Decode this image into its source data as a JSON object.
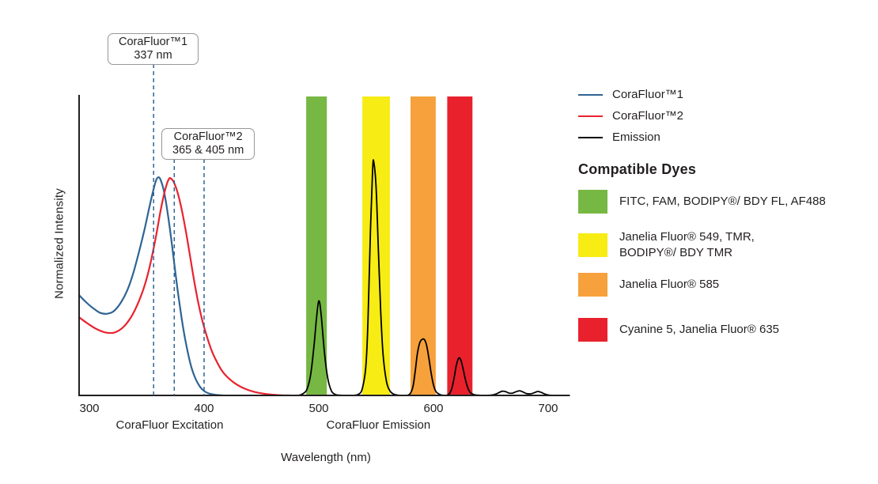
{
  "chart_data": {
    "type": "line",
    "title": "",
    "xlabel": "Wavelength (nm)",
    "ylabel": "Normalized Intensity",
    "x_ticks": [
      300,
      400,
      500,
      600,
      700
    ],
    "xlim": [
      291,
      718
    ],
    "ylim": [
      0,
      1.29
    ],
    "grid": false,
    "legend_position": "right",
    "axis_section_labels": [
      {
        "text": "CoraFluor Excitation",
        "at_nm": 370
      },
      {
        "text": "CoraFluor Emission",
        "at_nm": 552
      }
    ],
    "series": [
      {
        "name": "CoraFluor™1",
        "color": "#2f6493",
        "points": [
          [
            291,
            0.43
          ],
          [
            297,
            0.4
          ],
          [
            303,
            0.375
          ],
          [
            309,
            0.355
          ],
          [
            315,
            0.35
          ],
          [
            321,
            0.36
          ],
          [
            327,
            0.395
          ],
          [
            333,
            0.45
          ],
          [
            338,
            0.52
          ],
          [
            343,
            0.61
          ],
          [
            348,
            0.71
          ],
          [
            352,
            0.8
          ],
          [
            355,
            0.865
          ],
          [
            358,
            0.92
          ],
          [
            360,
            0.935
          ],
          [
            362,
            0.925
          ],
          [
            365,
            0.875
          ],
          [
            368,
            0.79
          ],
          [
            371,
            0.685
          ],
          [
            374,
            0.565
          ],
          [
            377,
            0.45
          ],
          [
            380,
            0.345
          ],
          [
            383,
            0.255
          ],
          [
            386,
            0.18
          ],
          [
            389,
            0.12
          ],
          [
            392,
            0.078
          ],
          [
            395,
            0.048
          ],
          [
            398,
            0.028
          ],
          [
            402,
            0.013
          ],
          [
            406,
            0.006
          ],
          [
            411,
            0.002
          ],
          [
            416,
            0
          ]
        ]
      },
      {
        "name": "CoraFluor™2",
        "color": "#e8232e",
        "points": [
          [
            291,
            0.335
          ],
          [
            298,
            0.31
          ],
          [
            306,
            0.285
          ],
          [
            314,
            0.27
          ],
          [
            322,
            0.27
          ],
          [
            330,
            0.295
          ],
          [
            338,
            0.35
          ],
          [
            346,
            0.44
          ],
          [
            352,
            0.54
          ],
          [
            358,
            0.68
          ],
          [
            362,
            0.79
          ],
          [
            366,
            0.88
          ],
          [
            369,
            0.925
          ],
          [
            371,
            0.93
          ],
          [
            374,
            0.91
          ],
          [
            378,
            0.85
          ],
          [
            382,
            0.76
          ],
          [
            386,
            0.65
          ],
          [
            390,
            0.53
          ],
          [
            394,
            0.42
          ],
          [
            398,
            0.33
          ],
          [
            402,
            0.26
          ],
          [
            406,
            0.2
          ],
          [
            410,
            0.155
          ],
          [
            415,
            0.11
          ],
          [
            420,
            0.08
          ],
          [
            426,
            0.055
          ],
          [
            432,
            0.037
          ],
          [
            438,
            0.024
          ],
          [
            444,
            0.015
          ],
          [
            450,
            0.009
          ],
          [
            458,
            0.004
          ],
          [
            466,
            0.001
          ],
          [
            475,
            0
          ]
        ]
      },
      {
        "name": "Emission",
        "color": "#000000",
        "points": [
          [
            455,
            0
          ],
          [
            470,
            0
          ],
          [
            482,
            0
          ],
          [
            487,
            0.01
          ],
          [
            490,
            0.03
          ],
          [
            493,
            0.09
          ],
          [
            496,
            0.22
          ],
          [
            498,
            0.33
          ],
          [
            500,
            0.405
          ],
          [
            502,
            0.35
          ],
          [
            505,
            0.18
          ],
          [
            508,
            0.07
          ],
          [
            511,
            0.02
          ],
          [
            514,
            0.005
          ],
          [
            518,
            0.001
          ],
          [
            524,
            0
          ],
          [
            530,
            0
          ],
          [
            535,
            0.006
          ],
          [
            538,
            0.03
          ],
          [
            541,
            0.12
          ],
          [
            543,
            0.33
          ],
          [
            545,
            0.7
          ],
          [
            547,
            0.97
          ],
          [
            548,
            1.0
          ],
          [
            550,
            0.89
          ],
          [
            552,
            0.62
          ],
          [
            554,
            0.36
          ],
          [
            556,
            0.18
          ],
          [
            559,
            0.06
          ],
          [
            562,
            0.02
          ],
          [
            565,
            0.006
          ],
          [
            569,
            0.001
          ],
          [
            574,
            0
          ],
          [
            579,
            0.004
          ],
          [
            582,
            0.035
          ],
          [
            584,
            0.1
          ],
          [
            586,
            0.18
          ],
          [
            588,
            0.225
          ],
          [
            590,
            0.24
          ],
          [
            592,
            0.24
          ],
          [
            594,
            0.215
          ],
          [
            596,
            0.16
          ],
          [
            598,
            0.095
          ],
          [
            600,
            0.045
          ],
          [
            602,
            0.018
          ],
          [
            605,
            0.005
          ],
          [
            608,
            0.001
          ],
          [
            611,
            0
          ],
          [
            614,
            0.008
          ],
          [
            616,
            0.03
          ],
          [
            618,
            0.075
          ],
          [
            620,
            0.13
          ],
          [
            622,
            0.16
          ],
          [
            624,
            0.15
          ],
          [
            626,
            0.11
          ],
          [
            628,
            0.065
          ],
          [
            630,
            0.032
          ],
          [
            632,
            0.013
          ],
          [
            635,
            0.004
          ],
          [
            639,
            0.001
          ],
          [
            644,
            0
          ],
          [
            650,
            0.001
          ],
          [
            654,
            0.005
          ],
          [
            657,
            0.012
          ],
          [
            660,
            0.018
          ],
          [
            663,
            0.016
          ],
          [
            666,
            0.01
          ],
          [
            669,
            0.01
          ],
          [
            672,
            0.016
          ],
          [
            675,
            0.02
          ],
          [
            678,
            0.015
          ],
          [
            681,
            0.008
          ],
          [
            685,
            0.007
          ],
          [
            688,
            0.012
          ],
          [
            691,
            0.017
          ],
          [
            694,
            0.013
          ],
          [
            697,
            0.006
          ],
          [
            700,
            0.002
          ],
          [
            703,
            0
          ]
        ]
      }
    ],
    "bands": [
      {
        "name": "FITC / FAM / BODIPY FL / AF488 window",
        "color": "#76b843",
        "from_nm": 489,
        "to_nm": 507
      },
      {
        "name": "Janelia Fluor 549 / TMR window",
        "color": "#f7ec13",
        "from_nm": 538,
        "to_nm": 562
      },
      {
        "name": "Janelia Fluor 585 window",
        "color": "#f6a13b",
        "from_nm": 580,
        "to_nm": 602
      },
      {
        "name": "Cyanine 5 / Janelia Fluor 635 window",
        "color": "#e8212d",
        "from_nm": 612,
        "to_nm": 634
      }
    ],
    "annotations": [
      {
        "line1": "CoraFluor™1",
        "line2": "337 nm",
        "lines_at_nm": [
          356
        ]
      },
      {
        "line1": "CoraFluor™2",
        "line2": "365 & 405 nm",
        "lines_at_nm": [
          374,
          400
        ]
      }
    ],
    "dashed_line_color": "#2f6493"
  },
  "legend": {
    "items": [
      {
        "label": "CoraFluor™1",
        "color": "#2f6493"
      },
      {
        "label": "CoraFluor™2",
        "color": "#e8232e"
      },
      {
        "label": "Emission",
        "color": "#000000"
      }
    ]
  },
  "dyes": {
    "heading": "Compatible Dyes",
    "items": [
      {
        "color": "#76b843",
        "label": "FITC, FAM, BODIPY®/ BDY FL, AF488"
      },
      {
        "color": "#f7ec13",
        "label": "Janelia Fluor® 549, TMR,\nBODIPY®/ BDY TMR"
      },
      {
        "color": "#f6a13b",
        "label": "Janelia Fluor® 585"
      },
      {
        "color": "#e8212d",
        "label": "Cyanine 5, Janelia Fluor® 635"
      }
    ]
  }
}
